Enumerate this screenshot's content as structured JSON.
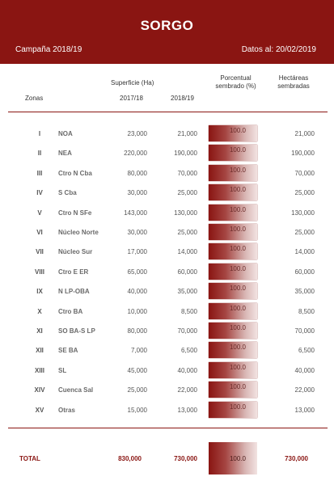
{
  "header": {
    "title": "SORGO",
    "campaign": "Campaña 2018/19",
    "date": "Datos al: 20/02/2019"
  },
  "columns": {
    "zonas": "Zonas",
    "superficie": "Superficie (Ha)",
    "year1": "2017/18",
    "year2": "2018/19",
    "porcentual_line1": "Porcentual",
    "porcentual_line2": "sembrado (%)",
    "hectareas_line1": "Hectáreas",
    "hectareas_line2": "sembradas"
  },
  "rows": [
    {
      "roman": "I",
      "zone": "NOA",
      "y2017": "23,000",
      "y2018": "21,000",
      "pct": "100.0",
      "ha": "21,000"
    },
    {
      "roman": "II",
      "zone": "NEA",
      "y2017": "220,000",
      "y2018": "190,000",
      "pct": "100.0",
      "ha": "190,000"
    },
    {
      "roman": "III",
      "zone": "Ctro N Cba",
      "y2017": "80,000",
      "y2018": "70,000",
      "pct": "100.0",
      "ha": "70,000"
    },
    {
      "roman": "IV",
      "zone": "S Cba",
      "y2017": "30,000",
      "y2018": "25,000",
      "pct": "100.0",
      "ha": "25,000"
    },
    {
      "roman": "V",
      "zone": "Ctro N SFe",
      "y2017": "143,000",
      "y2018": "130,000",
      "pct": "100.0",
      "ha": "130,000"
    },
    {
      "roman": "VI",
      "zone": "Núcleo Norte",
      "y2017": "30,000",
      "y2018": "25,000",
      "pct": "100.0",
      "ha": "25,000"
    },
    {
      "roman": "VII",
      "zone": "Núcleo Sur",
      "y2017": "17,000",
      "y2018": "14,000",
      "pct": "100.0",
      "ha": "14,000"
    },
    {
      "roman": "VIII",
      "zone": "Ctro E ER",
      "y2017": "65,000",
      "y2018": "60,000",
      "pct": "100.0",
      "ha": "60,000"
    },
    {
      "roman": "IX",
      "zone": "N LP-OBA",
      "y2017": "40,000",
      "y2018": "35,000",
      "pct": "100.0",
      "ha": "35,000"
    },
    {
      "roman": "X",
      "zone": "Ctro BA",
      "y2017": "10,000",
      "y2018": "8,500",
      "pct": "100.0",
      "ha": "8,500"
    },
    {
      "roman": "XI",
      "zone": "SO BA-S LP",
      "y2017": "80,000",
      "y2018": "70,000",
      "pct": "100.0",
      "ha": "70,000"
    },
    {
      "roman": "XII",
      "zone": "SE BA",
      "y2017": "7,000",
      "y2018": "6,500",
      "pct": "100.0",
      "ha": "6,500"
    },
    {
      "roman": "XIII",
      "zone": "SL",
      "y2017": "45,000",
      "y2018": "40,000",
      "pct": "100.0",
      "ha": "40,000"
    },
    {
      "roman": "XIV",
      "zone": "Cuenca Sal",
      "y2017": "25,000",
      "y2018": "22,000",
      "pct": "100.0",
      "ha": "22,000"
    },
    {
      "roman": "XV",
      "zone": "Otras",
      "y2017": "15,000",
      "y2018": "13,000",
      "pct": "100.0",
      "ha": "13,000"
    }
  ],
  "total": {
    "label": "TOTAL",
    "y2017": "830,000",
    "y2018": "730,000",
    "pct": "100.0",
    "ha": "730,000"
  },
  "colors": {
    "accent": "#8a1512"
  }
}
